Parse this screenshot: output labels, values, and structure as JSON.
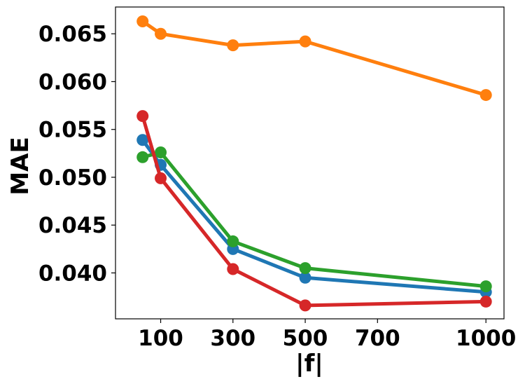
{
  "chart_data": {
    "type": "line",
    "title": "",
    "xlabel": "|f|",
    "ylabel": "MAE",
    "xlim": [
      -25,
      1050
    ],
    "ylim": [
      0.0352,
      0.0678
    ],
    "xticks": [
      100,
      300,
      500,
      700,
      1000
    ],
    "xtick_labels": [
      "100",
      "300",
      "500",
      "700",
      "1000"
    ],
    "yticks": [
      0.04,
      0.045,
      0.05,
      0.055,
      0.06,
      0.065
    ],
    "ytick_labels": [
      "0.040",
      "0.045",
      "0.050",
      "0.055",
      "0.060",
      "0.065"
    ],
    "grid": false,
    "legend": false,
    "x": [
      50,
      100,
      300,
      500,
      1000
    ],
    "series": [
      {
        "name": "series-orange",
        "color": "#ff7f0e",
        "values": [
          0.0663,
          0.065,
          0.0638,
          0.0642,
          0.0586
        ]
      },
      {
        "name": "series-blue",
        "color": "#1f77b4",
        "values": [
          0.0539,
          0.0513,
          0.0425,
          0.0395,
          0.038
        ]
      },
      {
        "name": "series-green",
        "color": "#2ca02c",
        "values": [
          0.0521,
          0.0526,
          0.0433,
          0.0405,
          0.0386
        ]
      },
      {
        "name": "series-red",
        "color": "#d62728",
        "values": [
          0.0564,
          0.0499,
          0.0404,
          0.0366,
          0.037
        ]
      }
    ]
  }
}
